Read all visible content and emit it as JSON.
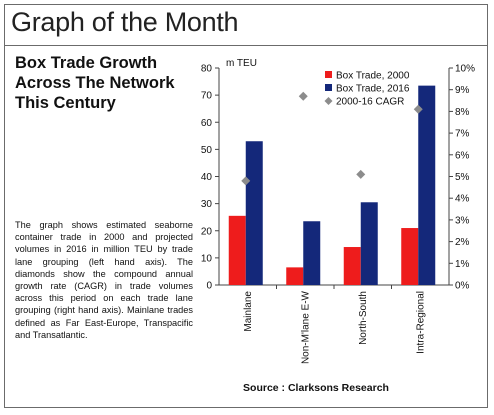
{
  "header": {
    "title": "Graph of the Month"
  },
  "article": {
    "subtitle_lines": [
      "Box Trade Growth",
      "Across The Network",
      "This Century"
    ],
    "body": "The graph shows estimated seaborne container trade in 2000 and projected volumes in 2016 in million TEU by trade lane grouping (left hand axis). The diamonds show the compound annual growth rate (CAGR) in trade volumes across this period on each trade lane grouping (right hand axis). Mainlane trades defined as Far East-Europe, Transpacific and Transatlantic."
  },
  "source": "Source : Clarksons Research",
  "colors": {
    "series_2000": "#ee1c1c",
    "series_2016": "#14287a",
    "cagr": "#8c8c8c"
  },
  "chart_data": {
    "type": "bar",
    "categories": [
      "Mainlane",
      "Non-M'lane E-W",
      "North-South",
      "Intra-Regional"
    ],
    "series": [
      {
        "name": "Box Trade, 2000",
        "axis": "left",
        "values": [
          25.5,
          6.5,
          14,
          21
        ]
      },
      {
        "name": "Box Trade, 2016",
        "axis": "left",
        "values": [
          53,
          23.5,
          30.5,
          73.5
        ]
      },
      {
        "name": "2000-16 CAGR",
        "axis": "right",
        "marker": "diamond",
        "values": [
          4.8,
          8.7,
          5.1,
          8.1
        ]
      }
    ],
    "ylabel": "m TEU",
    "ylim": [
      0,
      80
    ],
    "y_ticks": [
      "0",
      "10",
      "20",
      "30",
      "40",
      "50",
      "60",
      "70",
      "80"
    ],
    "y2lim": [
      0,
      10
    ],
    "y2_ticks": [
      "0%",
      "1%",
      "2%",
      "3%",
      "4%",
      "5%",
      "6%",
      "7%",
      "8%",
      "9%",
      "10%"
    ],
    "legend_position": "top-right",
    "grid": false
  }
}
